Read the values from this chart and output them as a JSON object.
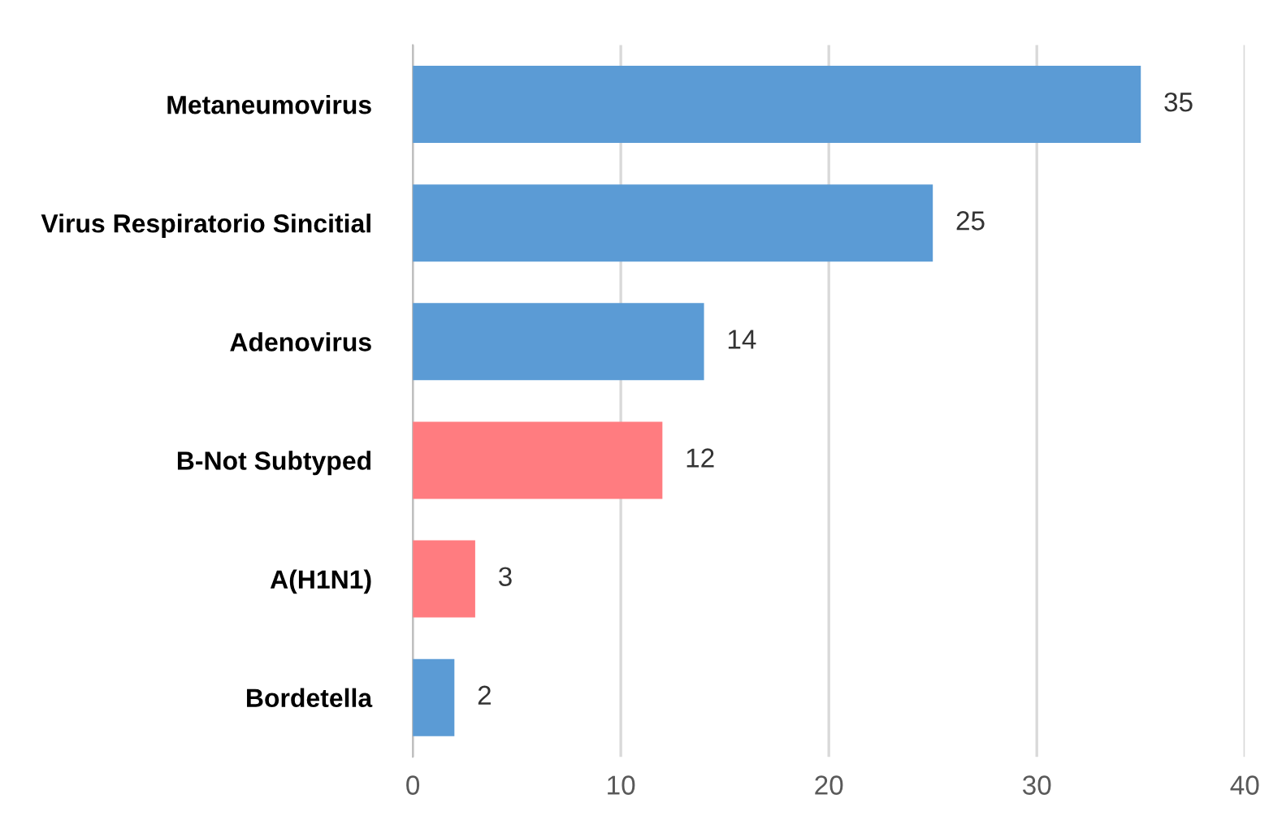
{
  "chart_data": {
    "type": "bar",
    "orientation": "horizontal",
    "categories": [
      "Metaneumovirus",
      "Virus Respiratorio Sincitial",
      "Adenovirus",
      "B-Not Subtyped",
      "A(H1N1)",
      "Bordetella"
    ],
    "values": [
      35,
      25,
      14,
      12,
      3,
      2
    ],
    "colors": [
      "#5b9bd5",
      "#5b9bd5",
      "#5b9bd5",
      "#ff7c80",
      "#ff7c80",
      "#5b9bd5"
    ],
    "xlim": [
      0,
      40
    ],
    "xticks": [
      0,
      10,
      20,
      30,
      40
    ],
    "grid": "x",
    "data_labels": true
  }
}
